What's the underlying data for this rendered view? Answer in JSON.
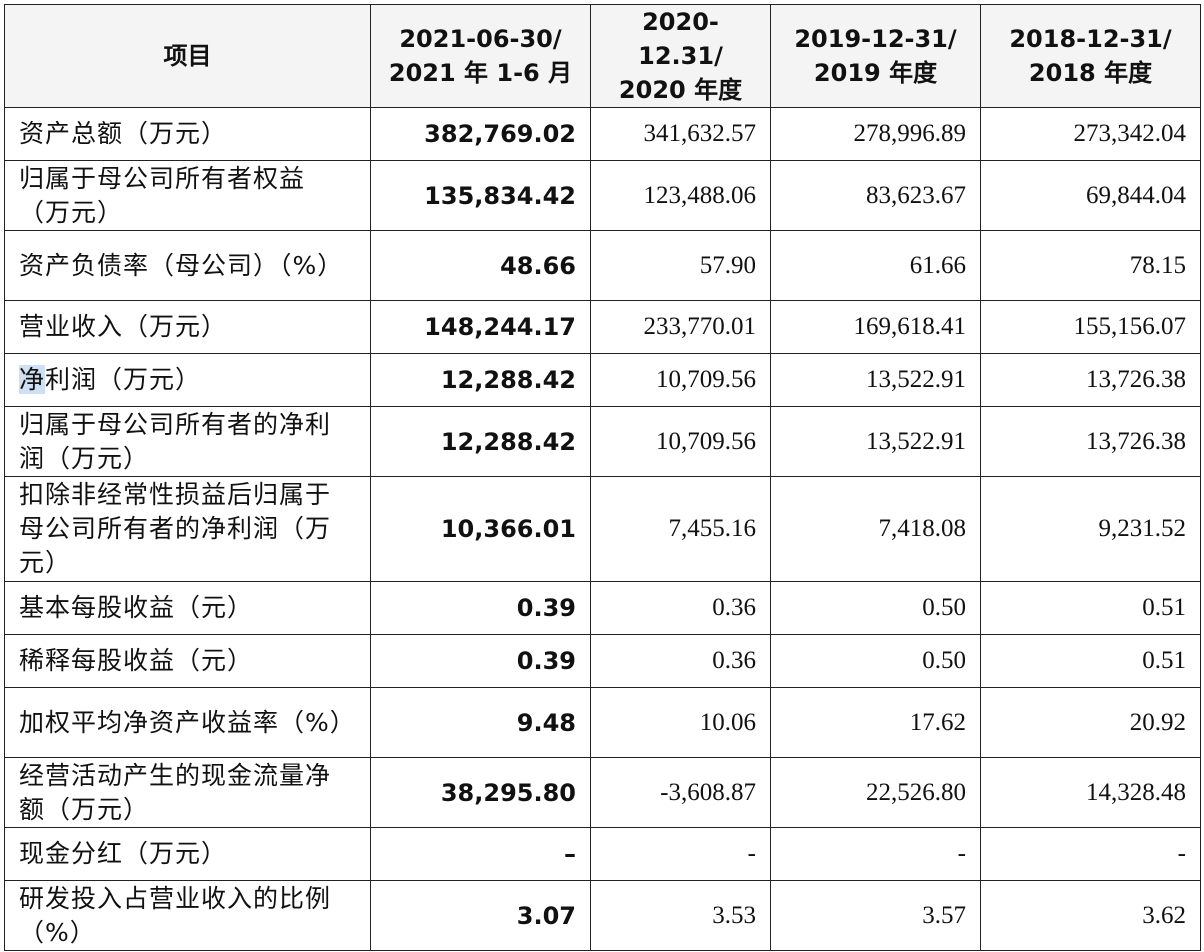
{
  "header": {
    "item": "项目",
    "col1_line1": "2021-06-30/",
    "col1_line2": "2021 年 1-6 月",
    "col2_line1": "2020-12.31/",
    "col2_line2": "2020 年度",
    "col3_line1": "2019-12-31/",
    "col3_line2": "2019 年度",
    "col4_line1": "2018-12-31/",
    "col4_line2": "2018 年度"
  },
  "rows": [
    {
      "label": "资产总额（万元）",
      "v2021": "382,769.02",
      "v2020": "341,632.57",
      "v2019": "278,996.89",
      "v2018": "273,342.04"
    },
    {
      "label": "归属于母公司所有者权益（万元）",
      "v2021": "135,834.42",
      "v2020": "123,488.06",
      "v2019": "83,623.67",
      "v2018": "69,844.04"
    },
    {
      "label": "资产负债率（母公司）（%）",
      "v2021": "48.66",
      "v2020": "57.90",
      "v2019": "61.66",
      "v2018": "78.15"
    },
    {
      "label": "营业收入（万元）",
      "v2021": "148,244.17",
      "v2020": "233,770.01",
      "v2019": "169,618.41",
      "v2018": "155,156.07"
    },
    {
      "label_hl": "净",
      "label_rest": "利润（万元）",
      "v2021": "12,288.42",
      "v2020": "10,709.56",
      "v2019": "13,522.91",
      "v2018": "13,726.38"
    },
    {
      "label": "归属于母公司所有者的净利润（万元）",
      "v2021": "12,288.42",
      "v2020": "10,709.56",
      "v2019": "13,522.91",
      "v2018": "13,726.38"
    },
    {
      "label": "扣除非经常性损益后归属于母公司所有者的净利润（万元）",
      "v2021": "10,366.01",
      "v2020": "7,455.16",
      "v2019": "7,418.08",
      "v2018": "9,231.52"
    },
    {
      "label": "基本每股收益（元）",
      "v2021": "0.39",
      "v2020": "0.36",
      "v2019": "0.50",
      "v2018": "0.51"
    },
    {
      "label": "稀释每股收益（元）",
      "v2021": "0.39",
      "v2020": "0.36",
      "v2019": "0.50",
      "v2018": "0.51"
    },
    {
      "label": "加权平均净资产收益率（%）",
      "v2021": "9.48",
      "v2020": "10.06",
      "v2019": "17.62",
      "v2018": "20.92"
    },
    {
      "label": "经营活动产生的现金流量净额（万元）",
      "v2021": "38,295.80",
      "v2020": "-3,608.87",
      "v2019": "22,526.80",
      "v2018": "14,328.48"
    },
    {
      "label": "现金分红（万元）",
      "v2021": "–",
      "v2020": "-",
      "v2019": "-",
      "v2018": "-"
    },
    {
      "label": "研发投入占营业收入的比例（%）",
      "v2021": "3.07",
      "v2020": "3.53",
      "v2019": "3.57",
      "v2018": "3.62"
    }
  ]
}
